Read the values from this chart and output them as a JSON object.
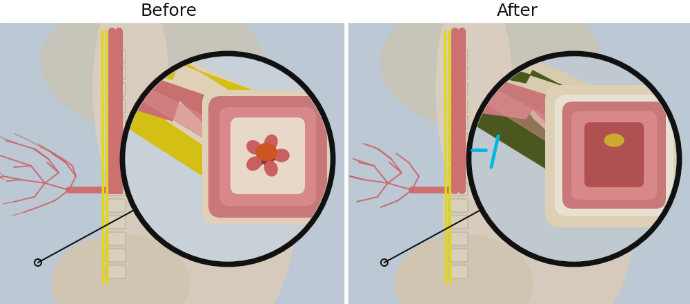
{
  "title_left": "Before",
  "title_right": "After",
  "title_fontsize": 18,
  "fig_width": 10.0,
  "fig_height": 4.4,
  "dpi": 100,
  "bg_left": "#c8d0da",
  "bg_right": "#c8d0da",
  "body_beige": "#d8cfc0",
  "body_beige2": "#c8bfb0",
  "lung_beige": "#e0d5c5",
  "spine_color": "#d0c8b8",
  "spine_edge": "#b8b0a0",
  "nerve_yellow": "#e8e020",
  "nerve_yellow2": "#d4cc00",
  "airway_pink": "#c87878",
  "airway_dark": "#a05858",
  "airway_red": "#cc6060",
  "circle_bg": "#e8dcc8",
  "circle_border": "#111111",
  "tube_outer_before": "#e0cdb0",
  "tube_yellow_nerve": "#d4c018",
  "tube_yellow_bright": "#e8d820",
  "tube_muscle_pink": "#c87070",
  "tube_muscle_light": "#d88080",
  "tube_inner_ring": "#e8c8c0",
  "tube_lumen_dark": "#8b3535",
  "tube_lumen_orange": "#cc6030",
  "tube_outer_after": "#d8cca8",
  "tube_green_nerve": "#4a5820",
  "tube_green_light": "#6a7830",
  "tube_muscle_after": "#c87878",
  "tube_lumen_after": "#d08080",
  "tube_lumen_open": "#c06868",
  "annotation_color": "#111111",
  "cyan_color": "#00b8e0",
  "white": "#ffffff",
  "panel_divider": "#ffffff",
  "title_color": "#111111"
}
